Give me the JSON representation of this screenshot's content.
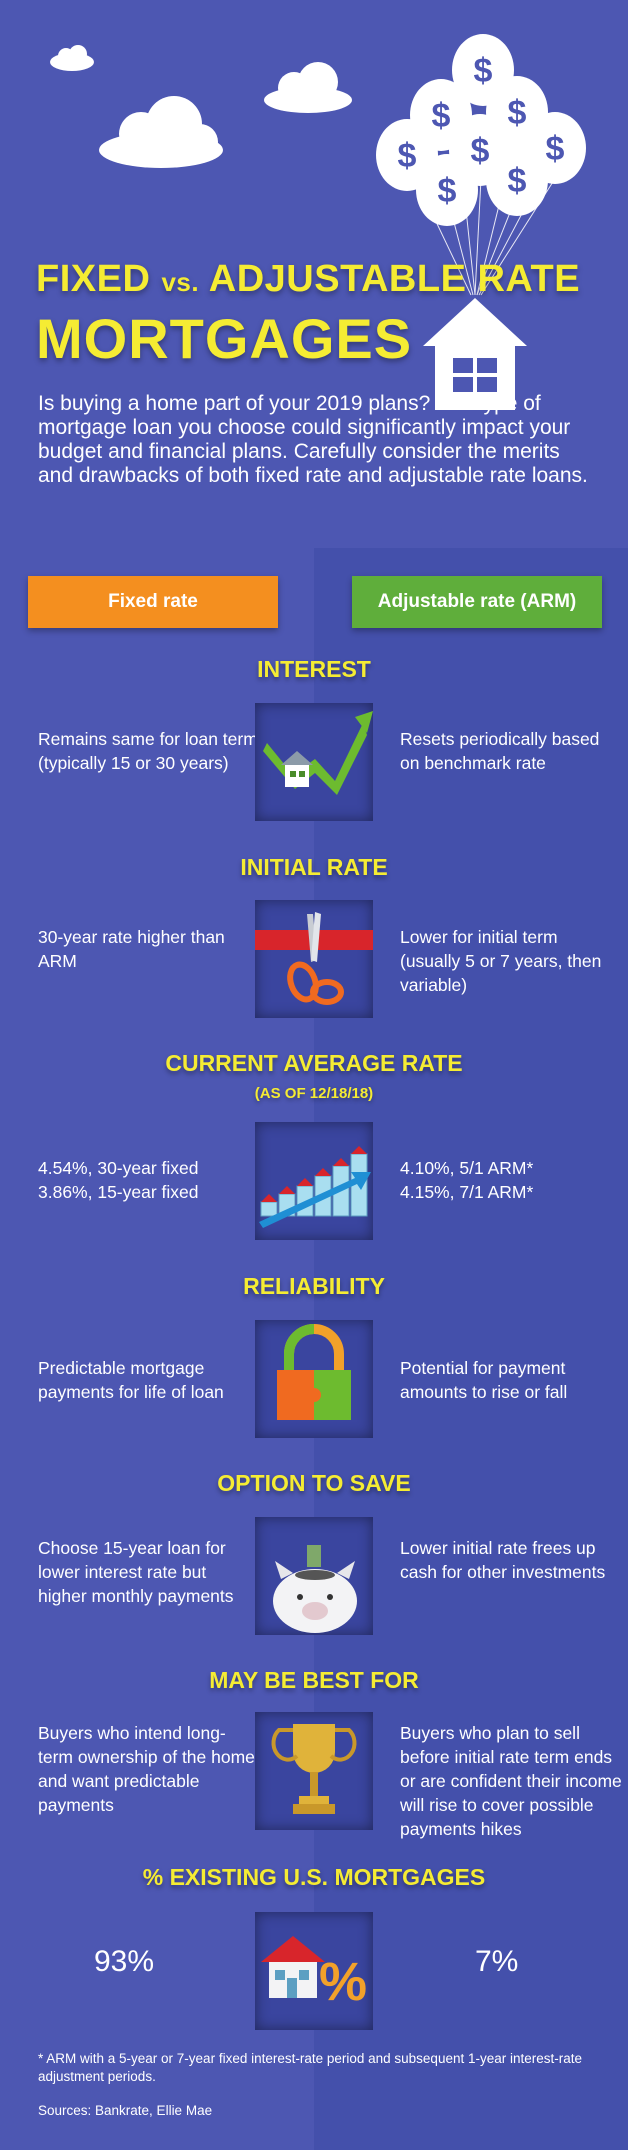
{
  "title": {
    "line1_a": "FIXED ",
    "line1_vs": "vs.",
    "line1_b": " ADJUSTABLE RATE",
    "line2": "MORTGAGES"
  },
  "intro": "Is buying a home part of your 2019 plans? The type of mortgage loan you choose could significantly impact your budget and financial plans. Carefully consider the merits and drawbacks of both fixed rate and adjustable rate loans.",
  "tabs": {
    "fixed": "Fixed rate",
    "arm": "Adjustable rate (ARM)"
  },
  "sections": {
    "interest": {
      "heading": "INTEREST",
      "fixed": "Remains same for loan term (typically 15 or 30 years)",
      "arm": "Resets periodically based on benchmark rate"
    },
    "initial_rate": {
      "heading": "INITIAL RATE",
      "fixed": "30-year rate higher than ARM",
      "arm": "Lower for initial term (usually 5 or 7 years, then variable)"
    },
    "current_rate": {
      "heading": "CURRENT AVERAGE RATE",
      "subheading": "(AS OF 12/18/18)",
      "fixed_line1": "4.54%, 30-year fixed",
      "fixed_line2": "3.86%, 15-year fixed",
      "arm_line1": "4.10%, 5/1 ARM*",
      "arm_line2": "4.15%, 7/1 ARM*"
    },
    "reliability": {
      "heading": "RELIABILITY",
      "fixed": "Predictable mortgage payments for life of loan",
      "arm": "Potential for payment amounts to rise or fall"
    },
    "option_to_save": {
      "heading": "OPTION TO SAVE",
      "fixed": "Choose 15-year loan for lower interest rate but higher monthly payments",
      "arm": "Lower initial rate frees up cash for other investments"
    },
    "best_for": {
      "heading": "MAY BE BEST FOR",
      "fixed": "Buyers who intend long-term ownership of the home and want predictable payments",
      "arm": "Buyers who plan to sell before initial rate term ends or are confident their income will rise to cover possible payments hikes"
    },
    "existing": {
      "heading": "% EXISTING U.S. MORTGAGES",
      "fixed": "93%",
      "arm": "7%",
      "icon_glyph": "%"
    }
  },
  "balloon_glyph": "$",
  "footnote": "* ARM with a 5-year or 7-year fixed interest-rate period and subsequent 1-year interest-rate adjustment periods.",
  "sources": "Sources: Bankrate, Ellie Mae",
  "colors": {
    "background": "#4d57b2",
    "title": "#f5ec33",
    "fixed_tab": "#f48f1f",
    "arm_tab": "#5fae3b"
  }
}
